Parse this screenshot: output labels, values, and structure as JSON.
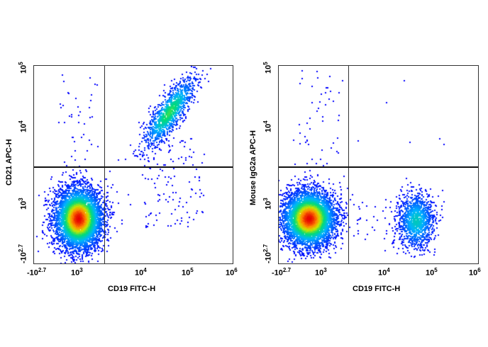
{
  "chart_data": [
    {
      "type": "scatter",
      "subtype": "flow-cytometry-density-dot-plot",
      "title": "",
      "xlabel": "CD19 FITC-H",
      "ylabel": "CD21 APC-H",
      "x_ticks": [
        "-10^2.7",
        "10^3",
        "10^4",
        "10^5",
        "10^6"
      ],
      "y_ticks": [
        "-10^2.7",
        "10^3",
        "10^4",
        "10^5"
      ],
      "x_scale": "biexponential",
      "y_scale": "biexponential",
      "quadrant_gate": {
        "x": 2500,
        "y": 2500
      },
      "populations": [
        {
          "name": "CD19- CD21-",
          "center_x": 600,
          "center_y": 500,
          "relative_size": "large",
          "density": "high"
        },
        {
          "name": "CD19+ CD21+",
          "center_x": 40000,
          "center_y": 20000,
          "relative_size": "medium",
          "density": "medium",
          "shape": "diagonal elongated"
        }
      ],
      "grid": false
    },
    {
      "type": "scatter",
      "subtype": "flow-cytometry-density-dot-plot",
      "title": "",
      "xlabel": "CD19 FITC-H",
      "ylabel": "Mouse IgG2a APC-H",
      "x_ticks": [
        "-10^2.7",
        "10^3",
        "10^4",
        "10^5",
        "10^6"
      ],
      "y_ticks": [
        "-10^2.7",
        "10^3",
        "10^4",
        "10^5"
      ],
      "x_scale": "biexponential",
      "y_scale": "biexponential",
      "quadrant_gate": {
        "x": 2500,
        "y": 2500
      },
      "populations": [
        {
          "name": "CD19- isotype-",
          "center_x": 500,
          "center_y": 500,
          "relative_size": "large",
          "density": "high"
        },
        {
          "name": "CD19+ isotype-",
          "center_x": 40000,
          "center_y": 450,
          "relative_size": "medium",
          "density": "medium"
        }
      ],
      "grid": false
    }
  ],
  "plots": [
    {
      "ylabel": "CD21 APC-H",
      "xlabel": "CD19 FITC-H",
      "yticks": [
        {
          "base": "10",
          "exp": "5"
        },
        {
          "base": "10",
          "exp": "4"
        },
        {
          "base": "10",
          "exp": "3"
        },
        {
          "base": "-10",
          "exp": "2.7"
        }
      ],
      "xticks": [
        {
          "base": "-10",
          "exp": "2.7"
        },
        {
          "base": "10",
          "exp": "3"
        },
        {
          "base": "10",
          "exp": "4"
        },
        {
          "base": "10",
          "exp": "5"
        },
        {
          "base": "10",
          "exp": "6"
        }
      ]
    },
    {
      "ylabel": "Mouse IgG2a APC-H",
      "xlabel": "CD19 FITC-H",
      "yticks": [
        {
          "base": "10",
          "exp": "5"
        },
        {
          "base": "10",
          "exp": "4"
        },
        {
          "base": "10",
          "exp": "3"
        },
        {
          "base": "-10",
          "exp": "2.7"
        }
      ],
      "xticks": [
        {
          "base": "-10",
          "exp": "2.7"
        },
        {
          "base": "10",
          "exp": "3"
        },
        {
          "base": "10",
          "exp": "4"
        },
        {
          "base": "10",
          "exp": "5"
        },
        {
          "base": "10",
          "exp": "6"
        }
      ]
    }
  ]
}
